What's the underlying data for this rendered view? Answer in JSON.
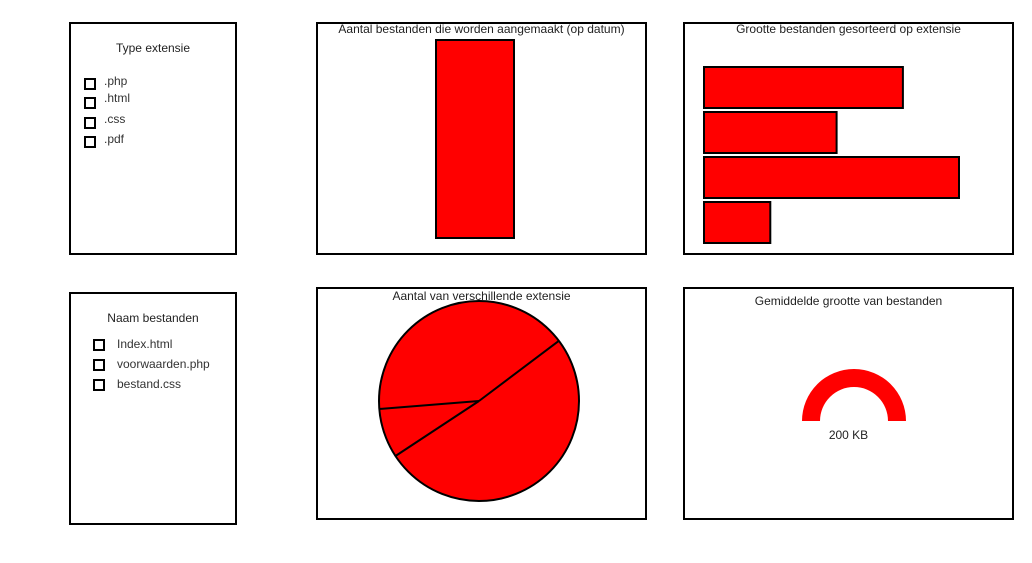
{
  "type_panel": {
    "title": "Type extensie",
    "items": [
      ".php",
      ".html",
      ".css",
      ".pdf"
    ]
  },
  "name_panel": {
    "title": "Naam bestanden",
    "items": [
      "Index.html",
      "voorwaarden.php",
      "bestand.css"
    ]
  },
  "chart_data": [
    {
      "type": "bar",
      "title": "Aantal bestanden die worden aangemaakt (op datum)",
      "orientation": "vertical",
      "values": [
        1
      ],
      "color": "#ff0000"
    },
    {
      "type": "bar",
      "title": "Grootte bestanden gesorteerd op extensie",
      "orientation": "horizontal",
      "values": [
        78,
        52,
        100,
        26
      ],
      "color": "#ff0000"
    },
    {
      "type": "pie",
      "title": "Aantal van verschillende extensie",
      "values": [
        51,
        8,
        41
      ],
      "color": "#ff0000"
    },
    {
      "type": "gauge",
      "title": "Gemiddelde grootte van bestanden",
      "value_label": "200 KB",
      "fraction": 1.0,
      "color": "#ff0000"
    }
  ]
}
